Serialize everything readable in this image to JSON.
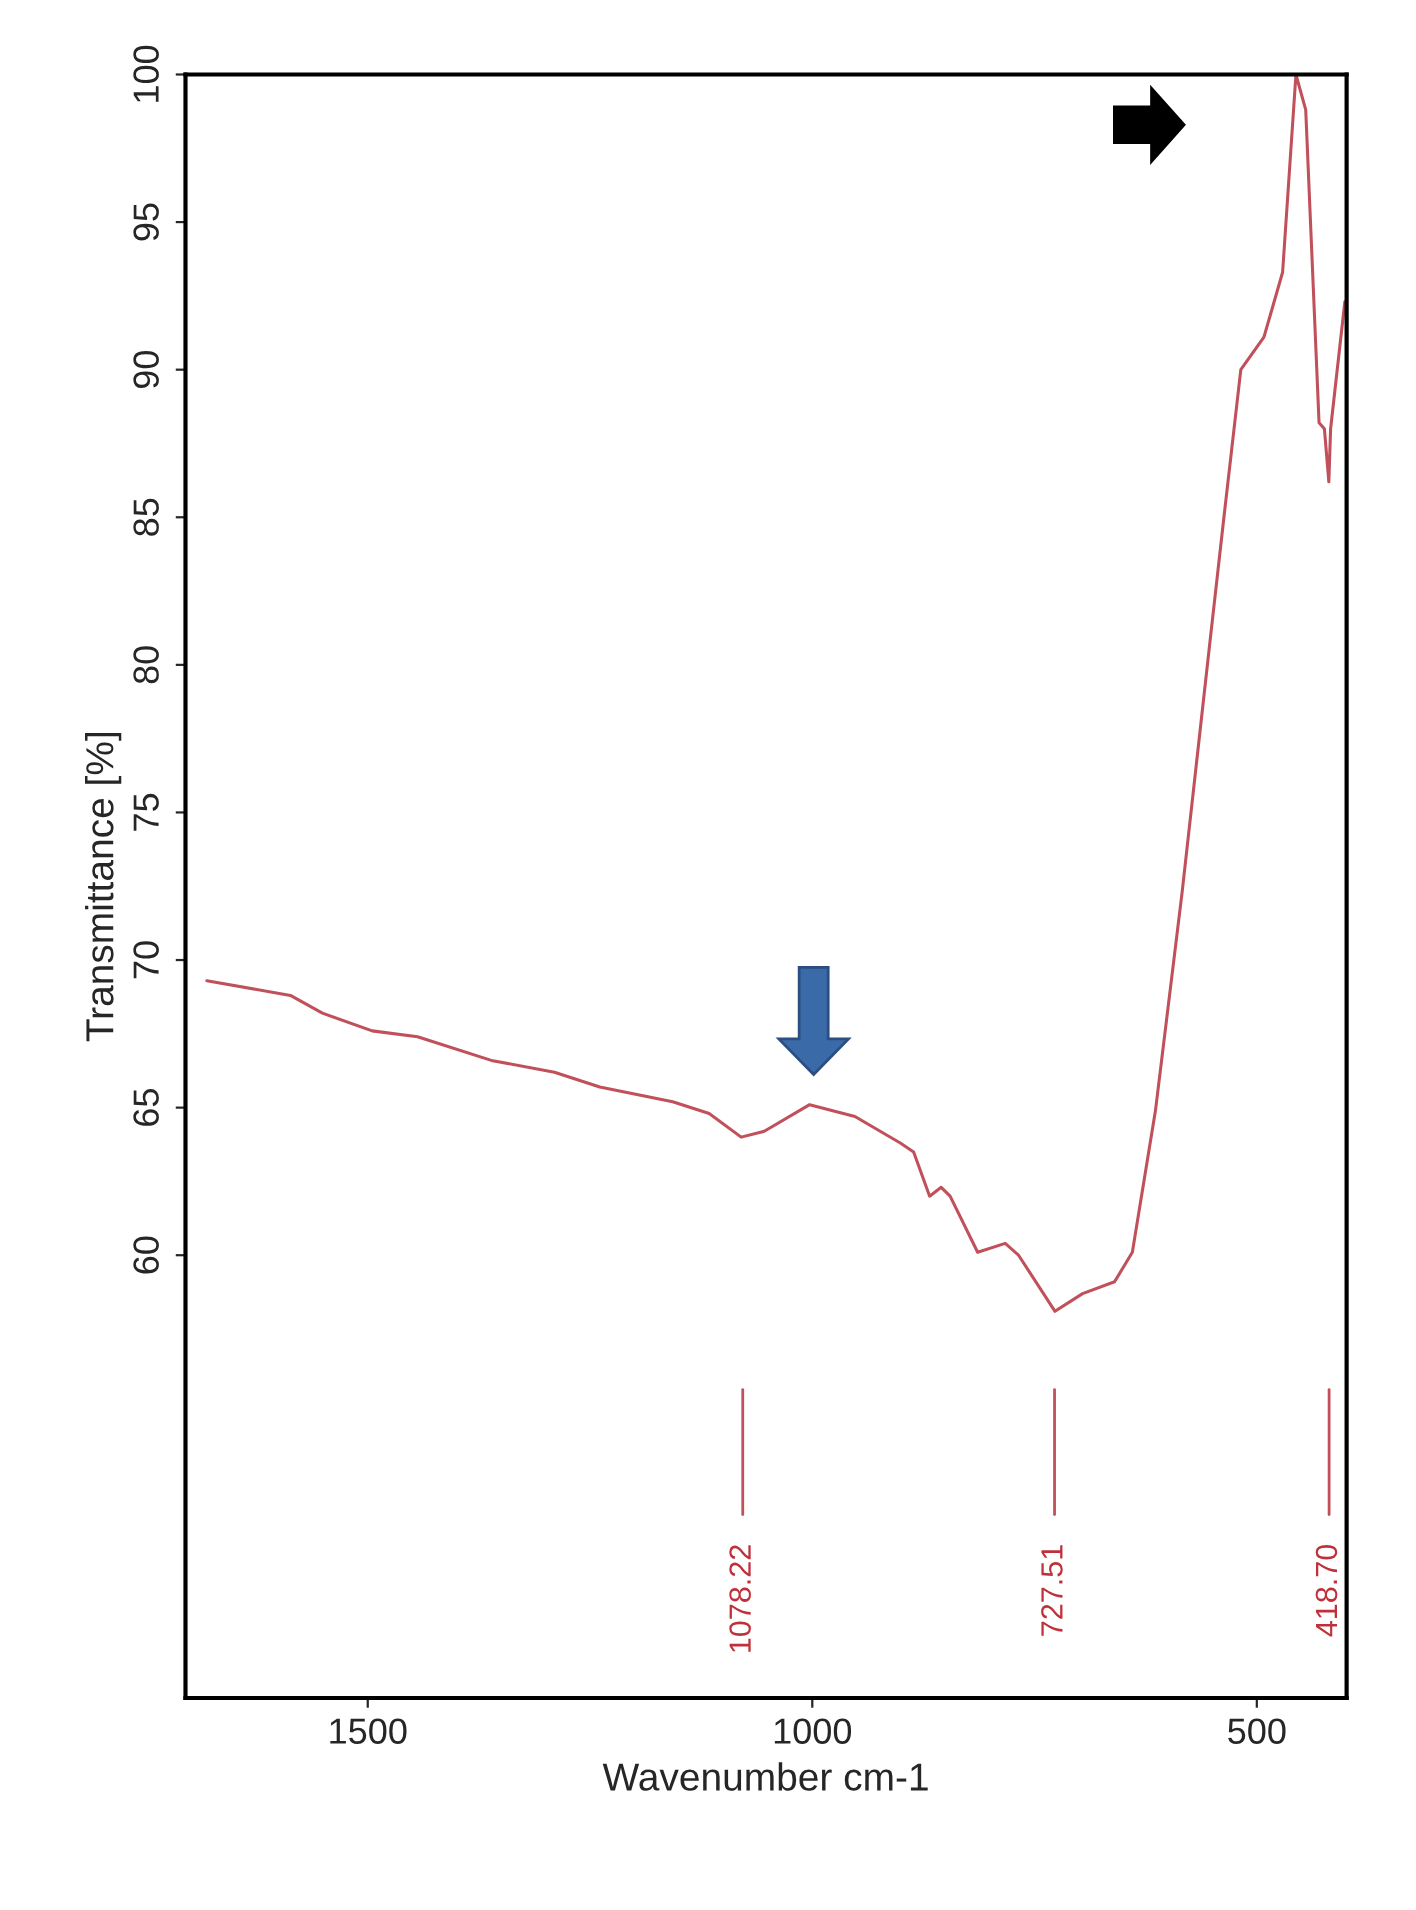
{
  "chart_data": {
    "type": "line",
    "xlabel": "Wavenumber cm-1",
    "ylabel": "Transmittance [%]",
    "x": [
      1681,
      1587,
      1551,
      1495,
      1444,
      1361,
      1290,
      1239,
      1157,
      1116,
      1080,
      1054,
      1003,
      952,
      901,
      886,
      868,
      855,
      845,
      814,
      783,
      768,
      727,
      696,
      660,
      640,
      614,
      584,
      553,
      537,
      518,
      492,
      471,
      456,
      445,
      430,
      424,
      419,
      417,
      401
    ],
    "series": [
      {
        "color": "#c0505a",
        "values": [
          69.3,
          68.8,
          68.2,
          67.6,
          67.4,
          66.6,
          66.2,
          65.7,
          65.2,
          64.8,
          64.0,
          64.2,
          65.1,
          64.7,
          63.8,
          63.5,
          62.0,
          62.3,
          62.0,
          60.1,
          60.4,
          60.0,
          58.1,
          58.7,
          59.1,
          60.1,
          64.9,
          72.3,
          80.7,
          85.0,
          90.0,
          91.1,
          93.3,
          100.0,
          98.8,
          88.2,
          88.0,
          86.2,
          88.0,
          92.3
        ]
      }
    ],
    "xlim": [
      1705,
      399
    ],
    "ylim": [
      45,
      100
    ],
    "xticks": [
      1500,
      1000,
      500
    ],
    "yticks": [
      60,
      65,
      70,
      75,
      80,
      85,
      90,
      95,
      100
    ],
    "grid": false,
    "legend": false,
    "marker": "none",
    "line_style": "solid",
    "ref_lines": [
      {
        "axis": "x",
        "value": 1078.22,
        "label": "1078.22",
        "color": "#c0505a"
      },
      {
        "axis": "x",
        "value": 727.51,
        "label": "727.51",
        "color": "#c0505a"
      },
      {
        "axis": "x",
        "value": 418.7,
        "label": "418.70",
        "color": "#c0505a"
      }
    ]
  }
}
